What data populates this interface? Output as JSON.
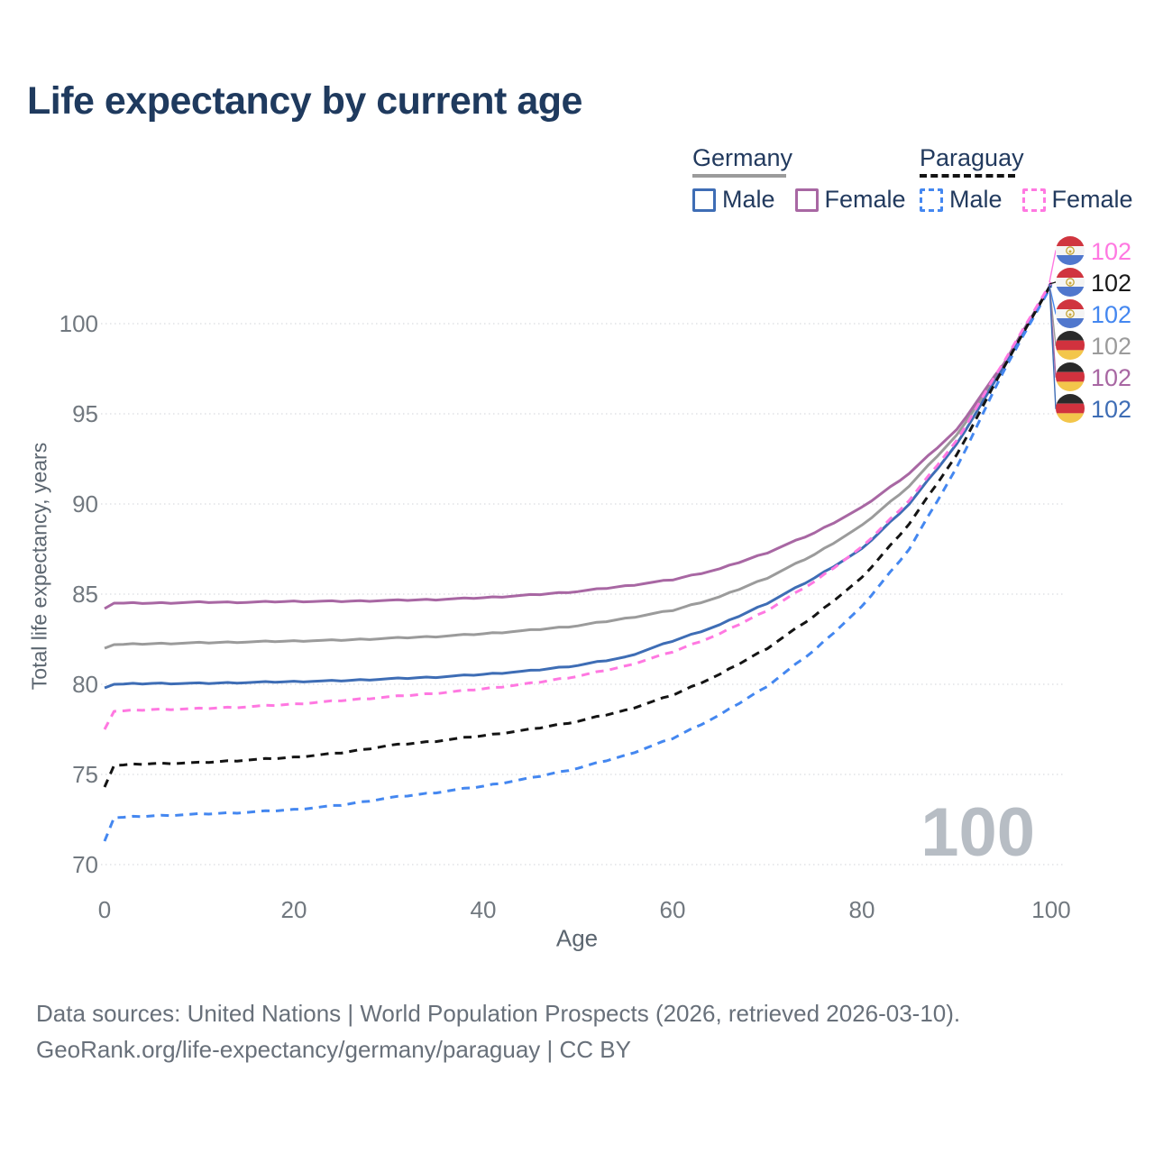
{
  "title": "Life expectancy by current age",
  "age_indicator": "100",
  "legend": {
    "groups": [
      {
        "country": "Germany",
        "line_style": "solid",
        "underline_color": "#9b9b9b",
        "underline_width": 104,
        "items": [
          {
            "label": "Male",
            "color": "#3e6db5",
            "dashed": false
          },
          {
            "label": "Female",
            "color": "#a867a3",
            "dashed": false
          }
        ]
      },
      {
        "country": "Paraguay",
        "line_style": "dashed",
        "underline_color": "#141414",
        "underline_width": 106,
        "items": [
          {
            "label": "Male",
            "color": "#4487f0",
            "dashed": true
          },
          {
            "label": "Female",
            "color": "#ff78e1",
            "dashed": true
          }
        ]
      }
    ]
  },
  "flags": {
    "paraguay": {
      "stripes": [
        "#d0353f",
        "#f4f4f4",
        "#5077cd"
      ],
      "emblem": true
    },
    "germany": {
      "stripes": [
        "#2a2a2a",
        "#d1323e",
        "#f3c64b"
      ],
      "emblem": false
    }
  },
  "end_labels": [
    {
      "flag": "paraguay",
      "value": "102",
      "color": "#ff78e1",
      "series": "Paraguay Female"
    },
    {
      "flag": "paraguay",
      "value": "102",
      "color": "#1a1a1a",
      "series": "Paraguay Both sexes"
    },
    {
      "flag": "paraguay",
      "value": "102",
      "color": "#4487f0",
      "series": "Paraguay Male"
    },
    {
      "flag": "germany",
      "value": "102",
      "color": "#9b9b9b",
      "series": "Germany Both sexes"
    },
    {
      "flag": "germany",
      "value": "102",
      "color": "#a867a3",
      "series": "Germany Female"
    },
    {
      "flag": "germany",
      "value": "102",
      "color": "#3e6db5",
      "series": "Germany Male"
    }
  ],
  "chart_data": {
    "type": "line",
    "title": "Life expectancy by current age",
    "xlabel": "Age",
    "ylabel": "Total life expectancy, years",
    "xlim": [
      0,
      100
    ],
    "ylim": [
      70,
      103
    ],
    "x_ticks": [
      0,
      20,
      40,
      60,
      80,
      100
    ],
    "y_ticks": [
      70,
      75,
      80,
      85,
      90,
      95,
      100
    ],
    "grid": true,
    "legend_position": "top-right",
    "x": [
      0,
      1,
      5,
      10,
      15,
      20,
      25,
      30,
      35,
      40,
      45,
      50,
      55,
      60,
      65,
      70,
      75,
      80,
      85,
      90,
      95,
      100
    ],
    "series": [
      {
        "name": "Germany Both sexes",
        "color": "#9b9b9b",
        "dash": "solid",
        "values": [
          82.0,
          82.2,
          82.25,
          82.3,
          82.35,
          82.4,
          82.45,
          82.55,
          82.65,
          82.8,
          83.0,
          83.25,
          83.65,
          84.1,
          84.85,
          85.9,
          87.2,
          88.8,
          91.0,
          93.8,
          97.7,
          102.2
        ]
      },
      {
        "name": "Germany Female",
        "color": "#a867a3",
        "dash": "solid",
        "values": [
          84.2,
          84.5,
          84.5,
          84.55,
          84.55,
          84.6,
          84.6,
          84.65,
          84.7,
          84.8,
          84.95,
          85.15,
          85.45,
          85.8,
          86.4,
          87.3,
          88.4,
          89.8,
          91.7,
          94.1,
          97.8,
          102.2
        ]
      },
      {
        "name": "Germany Male",
        "color": "#3e6db5",
        "dash": "solid",
        "values": [
          79.8,
          80.0,
          80.05,
          80.05,
          80.1,
          80.15,
          80.2,
          80.3,
          80.4,
          80.55,
          80.75,
          81.05,
          81.5,
          82.4,
          83.3,
          84.5,
          85.9,
          87.5,
          90.0,
          93.3,
          97.6,
          102.2
        ]
      },
      {
        "name": "Paraguay Male",
        "color": "#4487f0",
        "dash": "dashed",
        "values": [
          71.3,
          72.6,
          72.7,
          72.8,
          72.9,
          73.05,
          73.3,
          73.7,
          74.0,
          74.35,
          74.8,
          75.35,
          76.05,
          77.0,
          78.3,
          79.9,
          81.9,
          84.3,
          87.5,
          92.0,
          97.4,
          102.1
        ]
      },
      {
        "name": "Paraguay Both sexes",
        "color": "#141414",
        "dash": "dashed",
        "values": [
          74.3,
          75.5,
          75.6,
          75.65,
          75.8,
          75.95,
          76.2,
          76.6,
          76.85,
          77.15,
          77.5,
          77.95,
          78.55,
          79.4,
          80.55,
          82.0,
          83.8,
          85.9,
          88.9,
          92.7,
          97.6,
          102.2
        ]
      },
      {
        "name": "Paraguay Female",
        "color": "#ff78e1",
        "dash": "dashed",
        "values": [
          77.5,
          78.5,
          78.6,
          78.65,
          78.75,
          78.9,
          79.1,
          79.3,
          79.5,
          79.75,
          80.05,
          80.45,
          81.0,
          81.8,
          82.8,
          84.1,
          85.7,
          87.6,
          90.2,
          93.5,
          97.9,
          102.3
        ]
      }
    ]
  },
  "footer": {
    "line1": "Data sources: United Nations | World Population Prospects (2026, retrieved 2026-03-10).",
    "line2": "GeoRank.org/life-expectancy/germany/paraguay | CC BY"
  }
}
